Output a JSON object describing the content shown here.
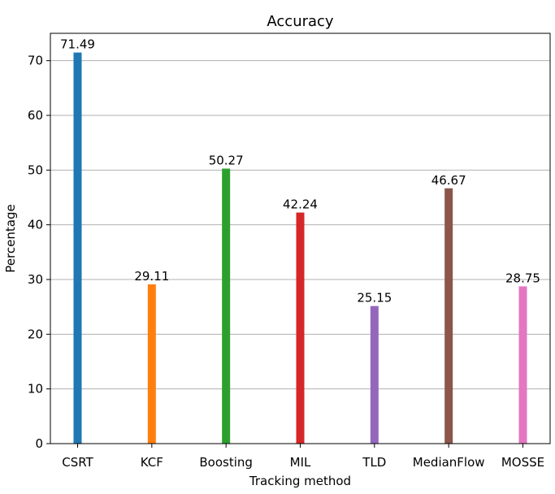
{
  "chart_data": {
    "type": "bar",
    "title": "Accuracy",
    "xlabel": "Tracking method",
    "ylabel": "Percentage",
    "categories": [
      "CSRT",
      "KCF",
      "Boosting",
      "MIL",
      "TLD",
      "MedianFlow",
      "MOSSE"
    ],
    "values": [
      71.49,
      29.11,
      50.27,
      42.24,
      25.15,
      46.67,
      28.75
    ],
    "value_labels": [
      "71.49",
      "29.11",
      "50.27",
      "42.24",
      "25.15",
      "46.67",
      "28.75"
    ],
    "colors": [
      "#1f77b4",
      "#ff7f0e",
      "#2ca02c",
      "#d62728",
      "#9467bd",
      "#8c564b",
      "#e377c2"
    ],
    "ylim": [
      0,
      75
    ],
    "yticks": [
      0,
      10,
      20,
      30,
      40,
      50,
      60,
      70
    ],
    "grid": "y",
    "legend": false
  }
}
